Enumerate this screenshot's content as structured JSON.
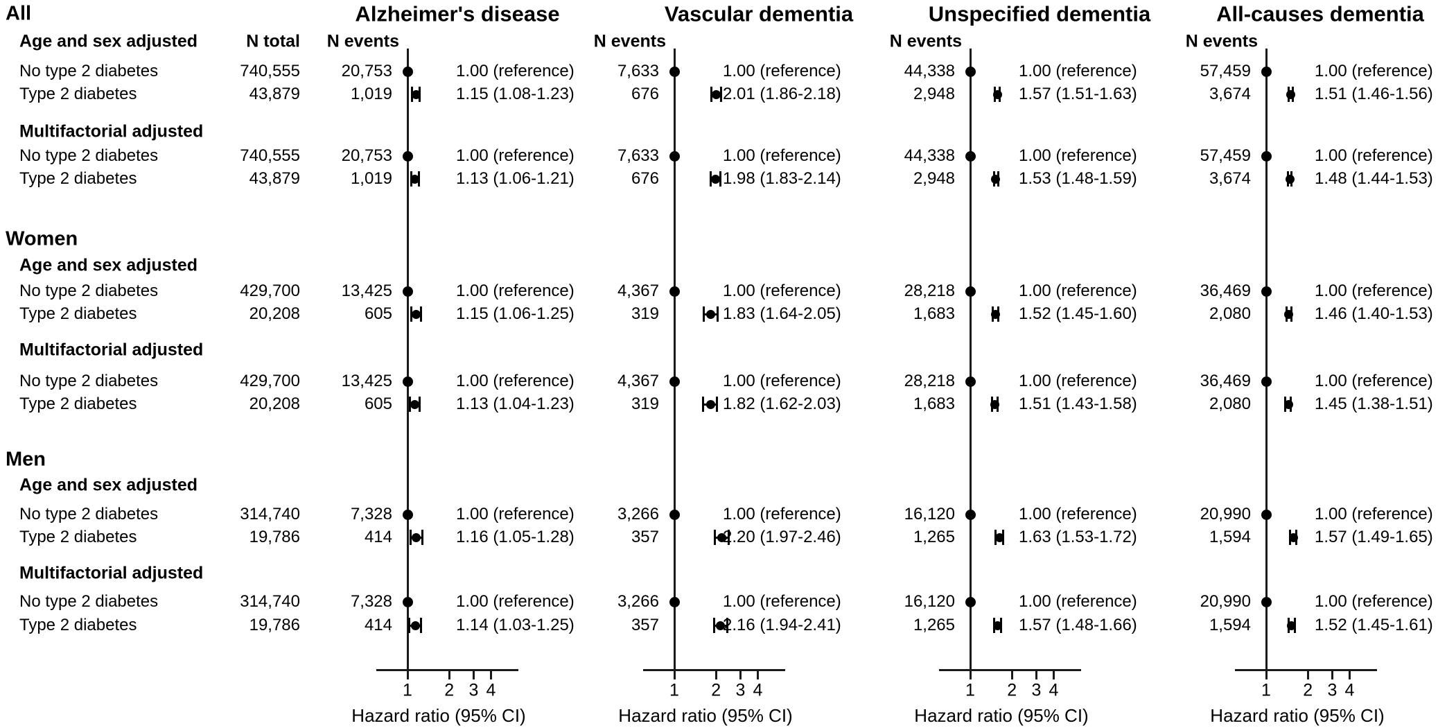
{
  "figure": {
    "axis_label": "Hazard ratio (95% CI)",
    "column_headers": {
      "n_total": "N total",
      "n_events": "N events"
    },
    "colors": {
      "foreground": "#000000",
      "background": "#ffffff"
    }
  },
  "chart_data": {
    "type": "scatter",
    "subtype": "forest-plot",
    "title": "",
    "x_axis": {
      "label": "Hazard ratio (95% CI)",
      "scale": "log",
      "ticks": [
        1,
        2,
        3,
        4
      ],
      "range": [
        0.6,
        6.3
      ],
      "grid": false
    },
    "panels": [
      {
        "title": "Alzheimer's disease"
      },
      {
        "title": "Vascular dementia"
      },
      {
        "title": "Unspecified dementia"
      },
      {
        "title": "All-causes dementia"
      }
    ],
    "groups": [
      {
        "name": "All",
        "sections": [
          {
            "label": "Age and sex adjusted",
            "rows": [
              {
                "label": "No type 2 diabetes",
                "n_total": "740,555",
                "cells": [
                  {
                    "n_events": "20,753",
                    "hr": 1.0,
                    "label": "1.00 (reference)",
                    "reference": true
                  },
                  {
                    "n_events": "7,633",
                    "hr": 1.0,
                    "label": "1.00 (reference)",
                    "reference": true
                  },
                  {
                    "n_events": "44,338",
                    "hr": 1.0,
                    "label": "1.00 (reference)",
                    "reference": true
                  },
                  {
                    "n_events": "57,459",
                    "hr": 1.0,
                    "label": "1.00 (reference)",
                    "reference": true
                  }
                ]
              },
              {
                "label": "Type 2 diabetes",
                "n_total": "43,879",
                "cells": [
                  {
                    "n_events": "1,019",
                    "hr": 1.15,
                    "ci_low": 1.08,
                    "ci_high": 1.23,
                    "label": "1.15 (1.08-1.23)"
                  },
                  {
                    "n_events": "676",
                    "hr": 2.01,
                    "ci_low": 1.86,
                    "ci_high": 2.18,
                    "label": "2.01 (1.86-2.18)"
                  },
                  {
                    "n_events": "2,948",
                    "hr": 1.57,
                    "ci_low": 1.51,
                    "ci_high": 1.63,
                    "label": "1.57 (1.51-1.63)"
                  },
                  {
                    "n_events": "3,674",
                    "hr": 1.51,
                    "ci_low": 1.46,
                    "ci_high": 1.56,
                    "label": "1.51 (1.46-1.56)"
                  }
                ]
              }
            ]
          },
          {
            "label": "Multifactorial adjusted",
            "rows": [
              {
                "label": "No type 2 diabetes",
                "n_total": "740,555",
                "cells": [
                  {
                    "n_events": "20,753",
                    "hr": 1.0,
                    "label": "1.00 (reference)",
                    "reference": true
                  },
                  {
                    "n_events": "7,633",
                    "hr": 1.0,
                    "label": "1.00 (reference)",
                    "reference": true
                  },
                  {
                    "n_events": "44,338",
                    "hr": 1.0,
                    "label": "1.00 (reference)",
                    "reference": true
                  },
                  {
                    "n_events": "57,459",
                    "hr": 1.0,
                    "label": "1.00 (reference)",
                    "reference": true
                  }
                ]
              },
              {
                "label": "Type 2 diabetes",
                "n_total": "43,879",
                "cells": [
                  {
                    "n_events": "1,019",
                    "hr": 1.13,
                    "ci_low": 1.06,
                    "ci_high": 1.21,
                    "label": "1.13 (1.06-1.21)"
                  },
                  {
                    "n_events": "676",
                    "hr": 1.98,
                    "ci_low": 1.83,
                    "ci_high": 2.14,
                    "label": "1.98 (1.83-2.14)"
                  },
                  {
                    "n_events": "2,948",
                    "hr": 1.53,
                    "ci_low": 1.48,
                    "ci_high": 1.59,
                    "label": "1.53 (1.48-1.59)"
                  },
                  {
                    "n_events": "3,674",
                    "hr": 1.48,
                    "ci_low": 1.44,
                    "ci_high": 1.53,
                    "label": "1.48 (1.44-1.53)"
                  }
                ]
              }
            ]
          }
        ]
      },
      {
        "name": "Women",
        "sections": [
          {
            "label": "Age and sex adjusted",
            "rows": [
              {
                "label": "No type 2 diabetes",
                "n_total": "429,700",
                "cells": [
                  {
                    "n_events": "13,425",
                    "hr": 1.0,
                    "label": "1.00 (reference)",
                    "reference": true
                  },
                  {
                    "n_events": "4,367",
                    "hr": 1.0,
                    "label": "1.00 (reference)",
                    "reference": true
                  },
                  {
                    "n_events": "28,218",
                    "hr": 1.0,
                    "label": "1.00 (reference)",
                    "reference": true
                  },
                  {
                    "n_events": "36,469",
                    "hr": 1.0,
                    "label": "1.00 (reference)",
                    "reference": true
                  }
                ]
              },
              {
                "label": "Type 2 diabetes",
                "n_total": "20,208",
                "cells": [
                  {
                    "n_events": "605",
                    "hr": 1.15,
                    "ci_low": 1.06,
                    "ci_high": 1.25,
                    "label": "1.15 (1.06-1.25)"
                  },
                  {
                    "n_events": "319",
                    "hr": 1.83,
                    "ci_low": 1.64,
                    "ci_high": 2.05,
                    "label": "1.83 (1.64-2.05)"
                  },
                  {
                    "n_events": "1,683",
                    "hr": 1.52,
                    "ci_low": 1.45,
                    "ci_high": 1.6,
                    "label": "1.52 (1.45-1.60)"
                  },
                  {
                    "n_events": "2,080",
                    "hr": 1.46,
                    "ci_low": 1.4,
                    "ci_high": 1.53,
                    "label": "1.46 (1.40-1.53)"
                  }
                ]
              }
            ]
          },
          {
            "label": "Multifactorial adjusted",
            "rows": [
              {
                "label": "No type 2 diabetes",
                "n_total": "429,700",
                "cells": [
                  {
                    "n_events": "13,425",
                    "hr": 1.0,
                    "label": "1.00 (reference)",
                    "reference": true
                  },
                  {
                    "n_events": "4,367",
                    "hr": 1.0,
                    "label": "1.00 (reference)",
                    "reference": true
                  },
                  {
                    "n_events": "28,218",
                    "hr": 1.0,
                    "label": "1.00 (reference)",
                    "reference": true
                  },
                  {
                    "n_events": "36,469",
                    "hr": 1.0,
                    "label": "1.00 (reference)",
                    "reference": true
                  }
                ]
              },
              {
                "label": "Type 2 diabetes",
                "n_total": "20,208",
                "cells": [
                  {
                    "n_events": "605",
                    "hr": 1.13,
                    "ci_low": 1.04,
                    "ci_high": 1.23,
                    "label": "1.13 (1.04-1.23)"
                  },
                  {
                    "n_events": "319",
                    "hr": 1.82,
                    "ci_low": 1.62,
                    "ci_high": 2.03,
                    "label": "1.82 (1.62-2.03)"
                  },
                  {
                    "n_events": "1,683",
                    "hr": 1.51,
                    "ci_low": 1.43,
                    "ci_high": 1.58,
                    "label": "1.51 (1.43-1.58)"
                  },
                  {
                    "n_events": "2,080",
                    "hr": 1.45,
                    "ci_low": 1.38,
                    "ci_high": 1.51,
                    "label": "1.45 (1.38-1.51)"
                  }
                ]
              }
            ]
          }
        ]
      },
      {
        "name": "Men",
        "sections": [
          {
            "label": "Age and sex adjusted",
            "rows": [
              {
                "label": "No type 2 diabetes",
                "n_total": "314,740",
                "cells": [
                  {
                    "n_events": "7,328",
                    "hr": 1.0,
                    "label": "1.00 (reference)",
                    "reference": true
                  },
                  {
                    "n_events": "3,266",
                    "hr": 1.0,
                    "label": "1.00 (reference)",
                    "reference": true
                  },
                  {
                    "n_events": "16,120",
                    "hr": 1.0,
                    "label": "1.00 (reference)",
                    "reference": true
                  },
                  {
                    "n_events": "20,990",
                    "hr": 1.0,
                    "label": "1.00 (reference)",
                    "reference": true
                  }
                ]
              },
              {
                "label": "Type 2 diabetes",
                "n_total": "19,786",
                "cells": [
                  {
                    "n_events": "414",
                    "hr": 1.16,
                    "ci_low": 1.05,
                    "ci_high": 1.28,
                    "label": "1.16 (1.05-1.28)"
                  },
                  {
                    "n_events": "357",
                    "hr": 2.2,
                    "ci_low": 1.97,
                    "ci_high": 2.46,
                    "label": "2.20 (1.97-2.46)"
                  },
                  {
                    "n_events": "1,265",
                    "hr": 1.63,
                    "ci_low": 1.53,
                    "ci_high": 1.72,
                    "label": "1.63 (1.53-1.72)"
                  },
                  {
                    "n_events": "1,594",
                    "hr": 1.57,
                    "ci_low": 1.49,
                    "ci_high": 1.65,
                    "label": "1.57 (1.49-1.65)"
                  }
                ]
              }
            ]
          },
          {
            "label": "Multifactorial adjusted",
            "rows": [
              {
                "label": "No type 2 diabetes",
                "n_total": "314,740",
                "cells": [
                  {
                    "n_events": "7,328",
                    "hr": 1.0,
                    "label": "1.00 (reference)",
                    "reference": true
                  },
                  {
                    "n_events": "3,266",
                    "hr": 1.0,
                    "label": "1.00 (reference)",
                    "reference": true
                  },
                  {
                    "n_events": "16,120",
                    "hr": 1.0,
                    "label": "1.00 (reference)",
                    "reference": true
                  },
                  {
                    "n_events": "20,990",
                    "hr": 1.0,
                    "label": "1.00 (reference)",
                    "reference": true
                  }
                ]
              },
              {
                "label": "Type 2 diabetes",
                "n_total": "19,786",
                "cells": [
                  {
                    "n_events": "414",
                    "hr": 1.14,
                    "ci_low": 1.03,
                    "ci_high": 1.25,
                    "label": "1.14 (1.03-1.25)"
                  },
                  {
                    "n_events": "357",
                    "hr": 2.16,
                    "ci_low": 1.94,
                    "ci_high": 2.41,
                    "label": "2.16 (1.94-2.41)"
                  },
                  {
                    "n_events": "1,265",
                    "hr": 1.57,
                    "ci_low": 1.48,
                    "ci_high": 1.66,
                    "label": "1.57 (1.48-1.66)"
                  },
                  {
                    "n_events": "1,594",
                    "hr": 1.52,
                    "ci_low": 1.45,
                    "ci_high": 1.61,
                    "label": "1.52 (1.45-1.61)"
                  }
                ]
              }
            ]
          }
        ]
      }
    ]
  }
}
